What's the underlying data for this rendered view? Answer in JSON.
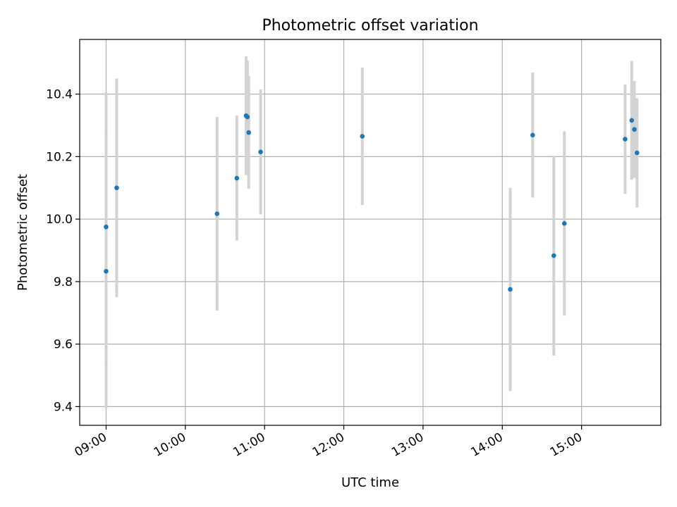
{
  "chart_data": {
    "type": "scatter",
    "title": "Photometric offset variation",
    "xlabel": "UTC time",
    "ylabel": "Photometric offset",
    "xlim": [
      "08:40",
      "16:00"
    ],
    "ylim": [
      9.34,
      10.575
    ],
    "grid": true,
    "x_ticks": [
      "09:00",
      "10:00",
      "11:00",
      "12:00",
      "13:00",
      "14:00",
      "15:00"
    ],
    "y_ticks": [
      9.4,
      9.6,
      9.8,
      10.0,
      10.2,
      10.4
    ],
    "y_tick_labels": [
      "9.4",
      "9.6",
      "9.8",
      "10.0",
      "10.2",
      "10.4"
    ],
    "colors": {
      "marker": "#1f77b4",
      "errorbar": "#d3d3d3",
      "grid": "#b0b0b0"
    },
    "points": [
      {
        "x": "09:00",
        "y": 9.833,
        "err": 0.44
      },
      {
        "x": "09:00",
        "y": 9.975,
        "err": 0.43
      },
      {
        "x": "09:08",
        "y": 10.1,
        "err": 0.35
      },
      {
        "x": "10:24",
        "y": 10.017,
        "err": 0.31
      },
      {
        "x": "10:39",
        "y": 10.131,
        "err": 0.2
      },
      {
        "x": "10:46",
        "y": 10.331,
        "err": 0.19
      },
      {
        "x": "10:47",
        "y": 10.327,
        "err": 0.18
      },
      {
        "x": "10:48",
        "y": 10.277,
        "err": 0.18
      },
      {
        "x": "10:57",
        "y": 10.215,
        "err": 0.2
      },
      {
        "x": "12:14",
        "y": 10.265,
        "err": 0.22
      },
      {
        "x": "14:06",
        "y": 9.775,
        "err": 0.325
      },
      {
        "x": "14:23",
        "y": 10.269,
        "err": 0.2
      },
      {
        "x": "14:39",
        "y": 9.883,
        "err": 0.32
      },
      {
        "x": "14:47",
        "y": 9.986,
        "err": 0.295
      },
      {
        "x": "15:33",
        "y": 10.256,
        "err": 0.175
      },
      {
        "x": "15:38",
        "y": 10.316,
        "err": 0.19
      },
      {
        "x": "15:40",
        "y": 10.287,
        "err": 0.155
      },
      {
        "x": "15:42",
        "y": 10.212,
        "err": 0.175
      }
    ]
  }
}
